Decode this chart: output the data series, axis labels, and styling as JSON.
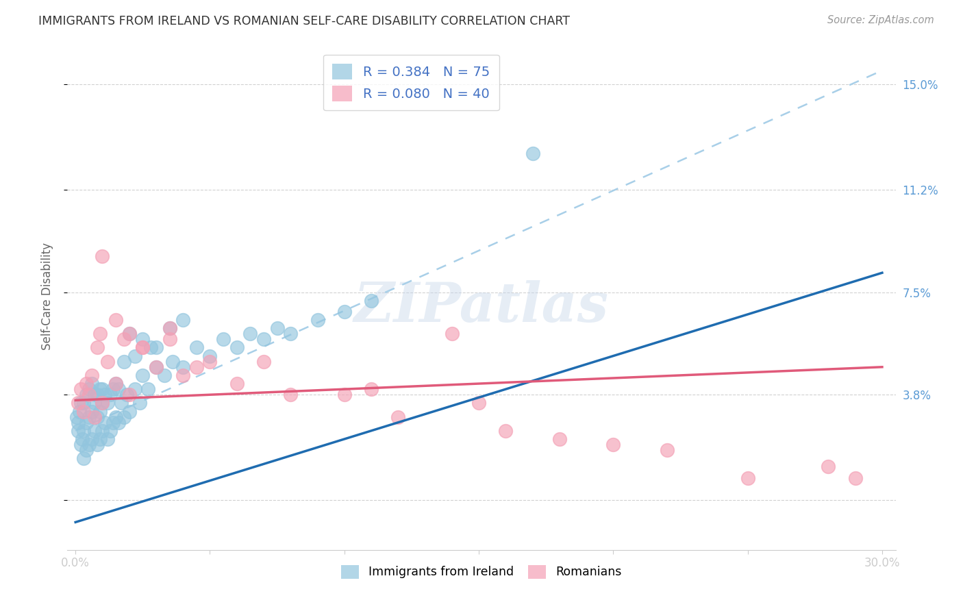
{
  "title": "IMMIGRANTS FROM IRELAND VS ROMANIAN SELF-CARE DISABILITY CORRELATION CHART",
  "source": "Source: ZipAtlas.com",
  "ylabel": "Self-Care Disability",
  "xlim": [
    -0.003,
    0.305
  ],
  "ylim": [
    -0.018,
    0.165
  ],
  "yticks": [
    0.0,
    0.038,
    0.075,
    0.112,
    0.15
  ],
  "ytick_labels": [
    "",
    "3.8%",
    "7.5%",
    "11.2%",
    "15.0%"
  ],
  "xticks": [
    0.0,
    0.05,
    0.1,
    0.15,
    0.2,
    0.25,
    0.3
  ],
  "xtick_labels": [
    "0.0%",
    "",
    "",
    "",
    "",
    "",
    "30.0%"
  ],
  "series1_color": "#92c5de",
  "series2_color": "#f4a0b5",
  "line1_color": "#1f6cb0",
  "line2_color": "#e05a7a",
  "dash_color": "#a8cfe8",
  "R1": 0.384,
  "N1": 75,
  "R2": 0.08,
  "N2": 40,
  "legend_label1": "Immigrants from Ireland",
  "legend_label2": "Romanians",
  "legend_R1_text": "R = 0.384   N = 75",
  "legend_R2_text": "R = 0.080   N = 40",
  "background_color": "#ffffff",
  "grid_color": "#cccccc",
  "title_color": "#333333",
  "right_tick_color": "#5b9bd5",
  "watermark_text": "ZIPatlas",
  "ireland_x": [
    0.0005,
    0.001,
    0.001,
    0.0015,
    0.002,
    0.002,
    0.0025,
    0.003,
    0.003,
    0.003,
    0.004,
    0.004,
    0.004,
    0.005,
    0.005,
    0.005,
    0.006,
    0.006,
    0.006,
    0.007,
    0.007,
    0.007,
    0.008,
    0.008,
    0.008,
    0.009,
    0.009,
    0.009,
    0.01,
    0.01,
    0.01,
    0.011,
    0.011,
    0.012,
    0.012,
    0.013,
    0.013,
    0.014,
    0.014,
    0.015,
    0.015,
    0.016,
    0.016,
    0.017,
    0.018,
    0.019,
    0.02,
    0.022,
    0.024,
    0.025,
    0.027,
    0.03,
    0.033,
    0.036,
    0.04,
    0.045,
    0.05,
    0.055,
    0.06,
    0.065,
    0.07,
    0.075,
    0.08,
    0.09,
    0.1,
    0.11,
    0.02,
    0.025,
    0.03,
    0.035,
    0.04,
    0.018,
    0.022,
    0.028,
    0.17
  ],
  "ireland_y": [
    0.03,
    0.025,
    0.028,
    0.032,
    0.02,
    0.035,
    0.022,
    0.015,
    0.025,
    0.035,
    0.018,
    0.028,
    0.038,
    0.02,
    0.03,
    0.04,
    0.022,
    0.032,
    0.042,
    0.025,
    0.035,
    0.038,
    0.02,
    0.03,
    0.038,
    0.022,
    0.032,
    0.04,
    0.025,
    0.035,
    0.04,
    0.028,
    0.038,
    0.022,
    0.035,
    0.025,
    0.038,
    0.028,
    0.04,
    0.03,
    0.042,
    0.028,
    0.04,
    0.035,
    0.03,
    0.038,
    0.032,
    0.04,
    0.035,
    0.045,
    0.04,
    0.048,
    0.045,
    0.05,
    0.048,
    0.055,
    0.052,
    0.058,
    0.055,
    0.06,
    0.058,
    0.062,
    0.06,
    0.065,
    0.068,
    0.072,
    0.06,
    0.058,
    0.055,
    0.062,
    0.065,
    0.05,
    0.052,
    0.055,
    0.125
  ],
  "romania_x": [
    0.001,
    0.002,
    0.003,
    0.004,
    0.005,
    0.006,
    0.007,
    0.008,
    0.009,
    0.01,
    0.012,
    0.015,
    0.018,
    0.02,
    0.025,
    0.03,
    0.035,
    0.04,
    0.05,
    0.06,
    0.08,
    0.1,
    0.12,
    0.15,
    0.18,
    0.2,
    0.25,
    0.28,
    0.16,
    0.22,
    0.01,
    0.015,
    0.02,
    0.025,
    0.035,
    0.045,
    0.07,
    0.11,
    0.14,
    0.29
  ],
  "romania_y": [
    0.035,
    0.04,
    0.032,
    0.042,
    0.038,
    0.045,
    0.03,
    0.055,
    0.06,
    0.035,
    0.05,
    0.042,
    0.058,
    0.038,
    0.055,
    0.048,
    0.062,
    0.045,
    0.05,
    0.042,
    0.038,
    0.038,
    0.03,
    0.035,
    0.022,
    0.02,
    0.008,
    0.012,
    0.025,
    0.018,
    0.088,
    0.065,
    0.06,
    0.055,
    0.058,
    0.048,
    0.05,
    0.04,
    0.06,
    0.008
  ],
  "ireland_line_x": [
    0.0,
    0.3
  ],
  "ireland_line_y": [
    -0.008,
    0.082
  ],
  "romania_line_x": [
    0.0,
    0.3
  ],
  "romania_line_y": [
    0.036,
    0.048
  ],
  "dash_line_x": [
    0.0,
    0.3
  ],
  "dash_line_y": [
    0.025,
    0.155
  ]
}
